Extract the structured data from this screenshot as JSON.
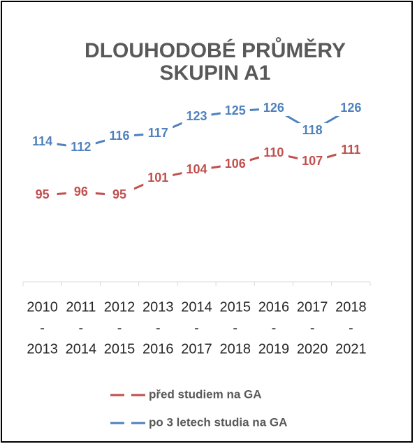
{
  "chart_data": {
    "type": "line",
    "title": [
      "DLOUHODOBÉ PRŮMĚRY",
      "SKUPIN A1"
    ],
    "categories": [
      [
        "2010",
        "-",
        "2013"
      ],
      [
        "2011",
        "-",
        "2014"
      ],
      [
        "2012",
        "-",
        "2015"
      ],
      [
        "2013",
        "-",
        "2016"
      ],
      [
        "2014",
        "-",
        "2017"
      ],
      [
        "2015",
        "-",
        "2018"
      ],
      [
        "2016",
        "-",
        "2019"
      ],
      [
        "2017",
        "-",
        "2020"
      ],
      [
        "2018",
        "-",
        "2021"
      ]
    ],
    "series": [
      {
        "name": "před studiem na GA",
        "color": "#c0504d",
        "values": [
          95,
          96,
          95,
          101,
          104,
          106,
          110,
          107,
          111
        ]
      },
      {
        "name": "po 3 letech studia na GA",
        "color": "#4f81bd",
        "values": [
          114,
          112,
          116,
          117,
          123,
          125,
          126,
          118,
          126
        ]
      }
    ],
    "ylim": [
      64,
      130
    ],
    "line_style": "dashed",
    "legend": "bottom"
  }
}
